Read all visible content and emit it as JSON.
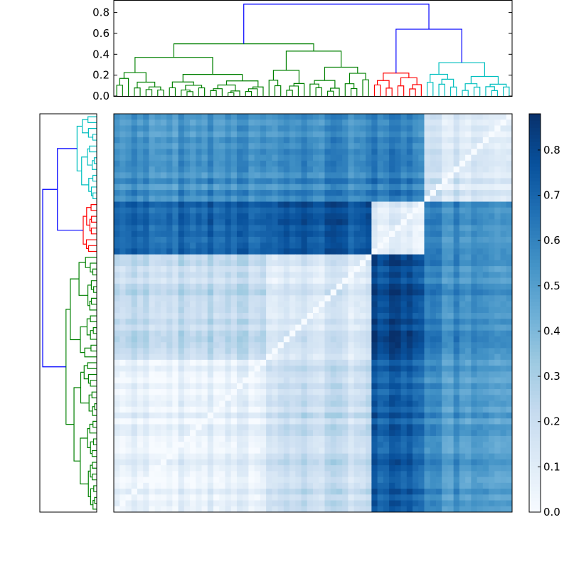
{
  "chart_data": [
    {
      "type": "dendrogram",
      "panel": "top-dendrogram",
      "orientation": "top",
      "ylim": [
        0,
        0.92
      ],
      "ticks": [
        "0.0",
        "0.2",
        "0.4",
        "0.6",
        "0.8"
      ],
      "tick_values": [
        0.0,
        0.2,
        0.4,
        0.6,
        0.8
      ],
      "clusters": [
        {
          "color": "#008000",
          "size": 44
        },
        {
          "color": "#ff0000",
          "size": 9
        },
        {
          "color": "#00bfbf",
          "size": 15
        }
      ],
      "merges": {
        "top_root": 0.88,
        "right_group": 0.64,
        "green_root": 0.5,
        "green_left": 0.37,
        "green_right": 0.43,
        "red_root": 0.22,
        "cyan_root": 0.32
      }
    },
    {
      "type": "dendrogram",
      "panel": "left-dendrogram",
      "orientation": "left",
      "clusters": [
        {
          "color": "#00bfbf",
          "size": 15
        },
        {
          "color": "#ff0000",
          "size": 9
        },
        {
          "color": "#008000",
          "size": 44
        }
      ]
    },
    {
      "type": "heatmap",
      "panel": "distance-matrix",
      "colormap": "Blues",
      "n": 68,
      "clim": [
        0,
        0.88
      ],
      "row_blocks": [
        {
          "name": "cyan",
          "size": 15
        },
        {
          "name": "red",
          "size": 9
        },
        {
          "name": "green-a",
          "size": 18
        },
        {
          "name": "green-b",
          "size": 26
        }
      ],
      "col_blocks": [
        {
          "name": "green-b",
          "size": 26
        },
        {
          "name": "green-a",
          "size": 18
        },
        {
          "name": "red",
          "size": 9
        },
        {
          "name": "cyan",
          "size": 15
        }
      ],
      "block_means": {
        "green-b|green-b": 0.08,
        "green-b|green-a": 0.22,
        "green-b|red": 0.72,
        "green-b|cyan": 0.55,
        "green-a|green-a": 0.14,
        "green-a|red": 0.78,
        "green-a|cyan": 0.58,
        "red|red": 0.1,
        "red|cyan": 0.6,
        "cyan|cyan": 0.16
      }
    },
    {
      "type": "colorbar",
      "panel": "colorbar",
      "colormap": "Blues",
      "range": [
        0,
        0.88
      ],
      "ticks": [
        "0.0",
        "0.1",
        "0.2",
        "0.3",
        "0.4",
        "0.5",
        "0.6",
        "0.7",
        "0.8"
      ],
      "tick_values": [
        0.0,
        0.1,
        0.2,
        0.3,
        0.4,
        0.5,
        0.6,
        0.7,
        0.8
      ]
    }
  ]
}
